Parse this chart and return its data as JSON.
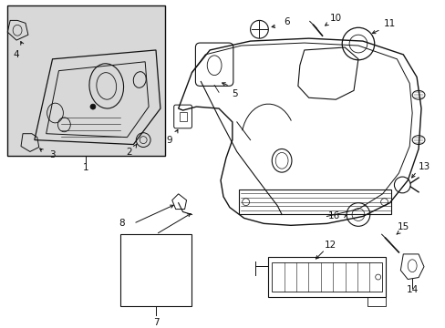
{
  "background": "#ffffff",
  "line_color": "#111111",
  "fig_width": 4.89,
  "fig_height": 3.6,
  "dpi": 100,
  "label_fontsize": 7.5
}
